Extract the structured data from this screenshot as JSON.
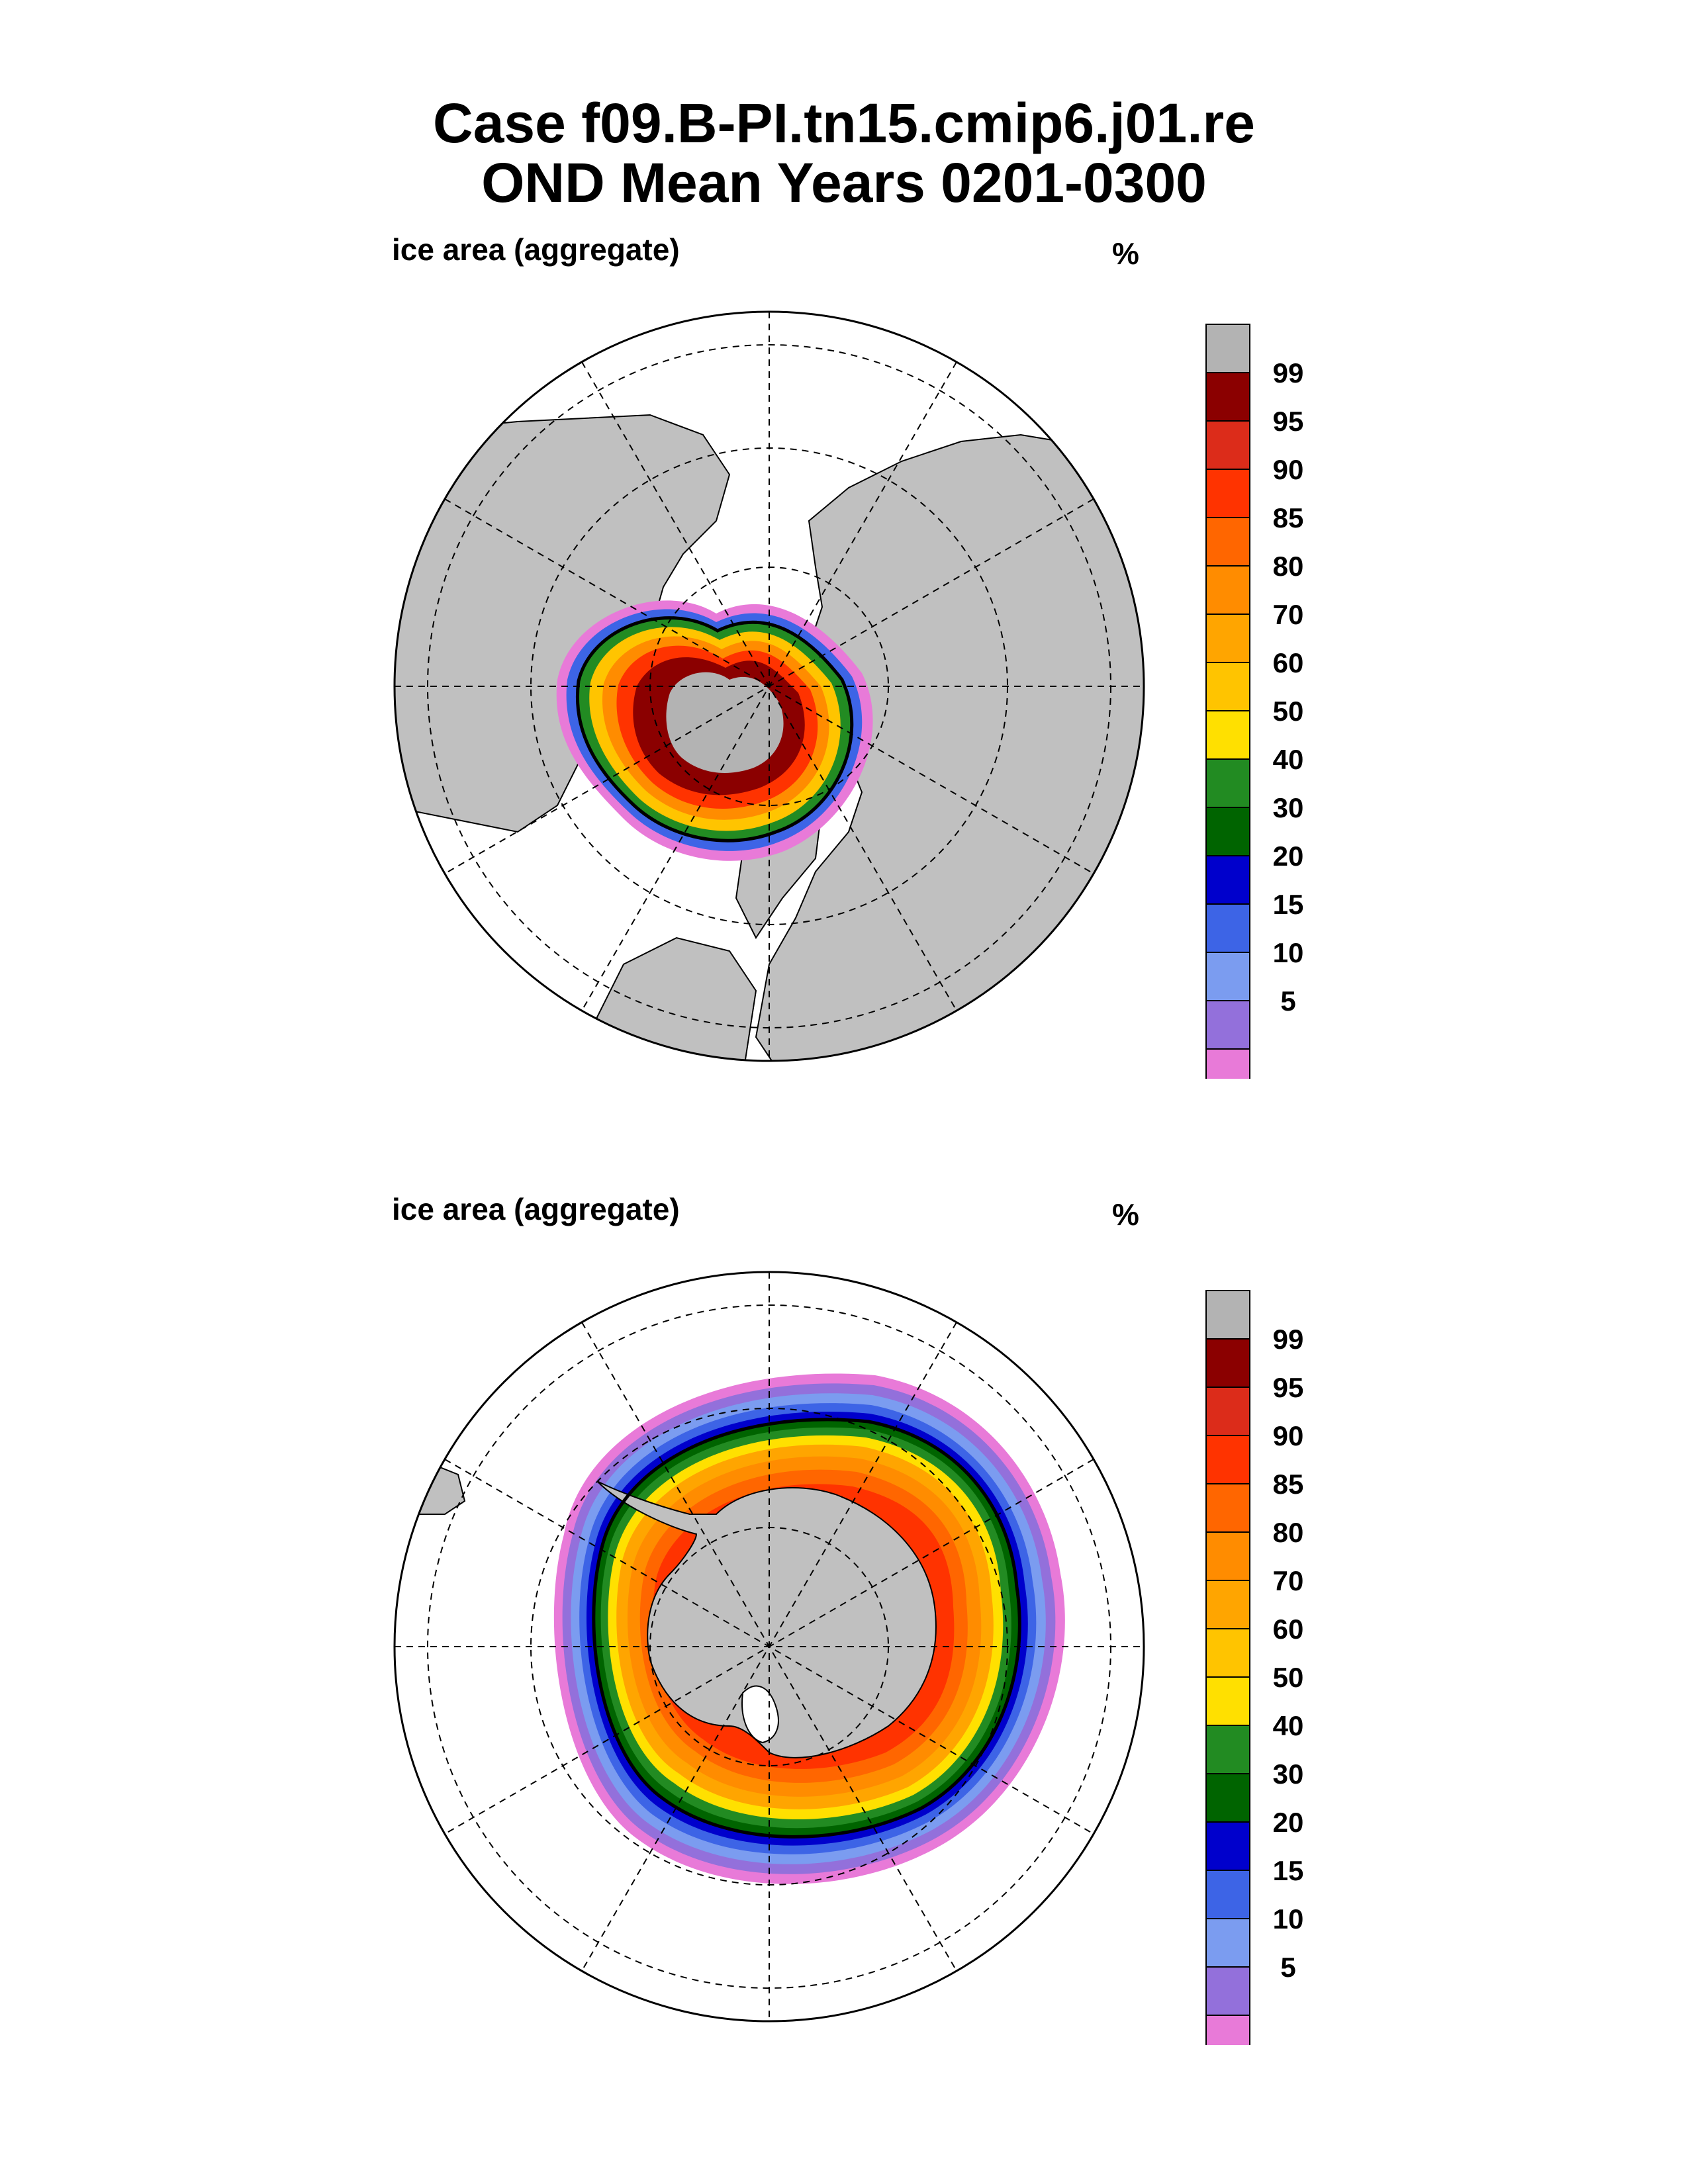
{
  "title": {
    "line1": "Case f09.B-PI.tn15.cmip6.j01.re",
    "line2": "OND Mean    Years 0201-0300"
  },
  "panels": [
    {
      "label": "ice area  (aggregate)",
      "unit": "%"
    },
    {
      "label": "ice area  (aggregate)",
      "unit": "%"
    }
  ],
  "colorbar": {
    "levels": [
      "99",
      "95",
      "90",
      "85",
      "80",
      "70",
      "60",
      "50",
      "40",
      "30",
      "20",
      "15",
      "10",
      "5"
    ],
    "colors": [
      "#b3b3b3",
      "#8b0000",
      "#dc2c1a",
      "#ff3300",
      "#ff6600",
      "#ff8c00",
      "#ffa500",
      "#ffc400",
      "#ffe000",
      "#228b22",
      "#006400",
      "#0000cc",
      "#3d64e6",
      "#7b9cf0",
      "#9370db",
      "#e87ad8"
    ]
  },
  "colors": {
    "land": "#c0c0c0",
    "ocean": "#ffffff",
    "ice_edge_line": "#000000"
  }
}
